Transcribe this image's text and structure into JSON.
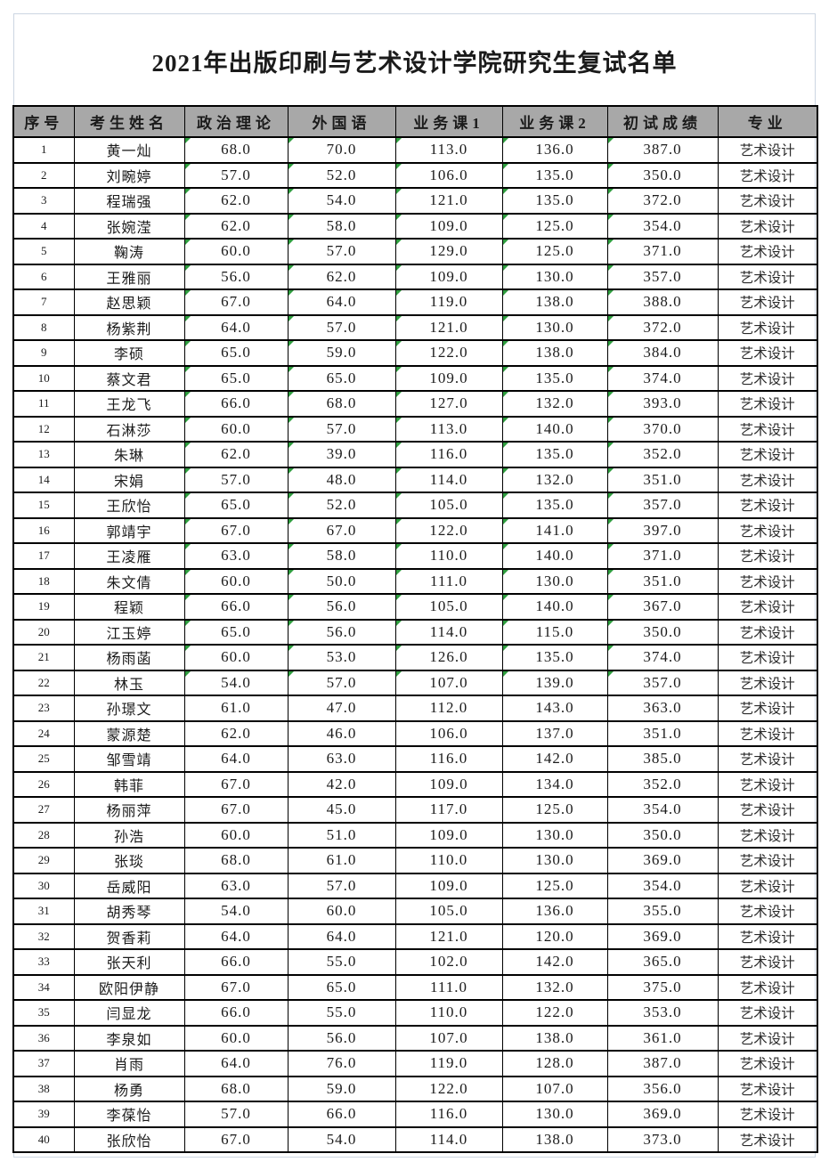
{
  "title": "2021年出版印刷与艺术设计学院研究生复试名单",
  "table": {
    "headers": [
      "序号",
      "考生姓名",
      "政治理论",
      "外国语",
      "业务课1",
      "业务课2",
      "初试成绩",
      "专业"
    ],
    "rows": [
      [
        "1",
        "黄一灿",
        "68.0",
        "70.0",
        "113.0",
        "136.0",
        "387.0",
        "艺术设计"
      ],
      [
        "2",
        "刘畹婷",
        "57.0",
        "52.0",
        "106.0",
        "135.0",
        "350.0",
        "艺术设计"
      ],
      [
        "3",
        "程瑞强",
        "62.0",
        "54.0",
        "121.0",
        "135.0",
        "372.0",
        "艺术设计"
      ],
      [
        "4",
        "张婉滢",
        "62.0",
        "58.0",
        "109.0",
        "125.0",
        "354.0",
        "艺术设计"
      ],
      [
        "5",
        "鞠涛",
        "60.0",
        "57.0",
        "129.0",
        "125.0",
        "371.0",
        "艺术设计"
      ],
      [
        "6",
        "王雅丽",
        "56.0",
        "62.0",
        "109.0",
        "130.0",
        "357.0",
        "艺术设计"
      ],
      [
        "7",
        "赵思颖",
        "67.0",
        "64.0",
        "119.0",
        "138.0",
        "388.0",
        "艺术设计"
      ],
      [
        "8",
        "杨紫荆",
        "64.0",
        "57.0",
        "121.0",
        "130.0",
        "372.0",
        "艺术设计"
      ],
      [
        "9",
        "李硕",
        "65.0",
        "59.0",
        "122.0",
        "138.0",
        "384.0",
        "艺术设计"
      ],
      [
        "10",
        "蔡文君",
        "65.0",
        "65.0",
        "109.0",
        "135.0",
        "374.0",
        "艺术设计"
      ],
      [
        "11",
        "王龙飞",
        "66.0",
        "68.0",
        "127.0",
        "132.0",
        "393.0",
        "艺术设计"
      ],
      [
        "12",
        "石淋莎",
        "60.0",
        "57.0",
        "113.0",
        "140.0",
        "370.0",
        "艺术设计"
      ],
      [
        "13",
        "朱琳",
        "62.0",
        "39.0",
        "116.0",
        "135.0",
        "352.0",
        "艺术设计"
      ],
      [
        "14",
        "宋娟",
        "57.0",
        "48.0",
        "114.0",
        "132.0",
        "351.0",
        "艺术设计"
      ],
      [
        "15",
        "王欣怡",
        "65.0",
        "52.0",
        "105.0",
        "135.0",
        "357.0",
        "艺术设计"
      ],
      [
        "16",
        "郭靖宇",
        "67.0",
        "67.0",
        "122.0",
        "141.0",
        "397.0",
        "艺术设计"
      ],
      [
        "17",
        "王凌雁",
        "63.0",
        "58.0",
        "110.0",
        "140.0",
        "371.0",
        "艺术设计"
      ],
      [
        "18",
        "朱文倩",
        "60.0",
        "50.0",
        "111.0",
        "130.0",
        "351.0",
        "艺术设计"
      ],
      [
        "19",
        "程颖",
        "66.0",
        "56.0",
        "105.0",
        "140.0",
        "367.0",
        "艺术设计"
      ],
      [
        "20",
        "江玉婷",
        "65.0",
        "56.0",
        "114.0",
        "115.0",
        "350.0",
        "艺术设计"
      ],
      [
        "21",
        "杨雨菡",
        "60.0",
        "53.0",
        "126.0",
        "135.0",
        "374.0",
        "艺术设计"
      ],
      [
        "22",
        "林玉",
        "54.0",
        "57.0",
        "107.0",
        "139.0",
        "357.0",
        "艺术设计"
      ],
      [
        "23",
        "孙璟文",
        "61.0",
        "47.0",
        "112.0",
        "143.0",
        "363.0",
        "艺术设计"
      ],
      [
        "24",
        "蒙源楚",
        "62.0",
        "46.0",
        "106.0",
        "137.0",
        "351.0",
        "艺术设计"
      ],
      [
        "25",
        "邹雪靖",
        "64.0",
        "63.0",
        "116.0",
        "142.0",
        "385.0",
        "艺术设计"
      ],
      [
        "26",
        "韩菲",
        "67.0",
        "42.0",
        "109.0",
        "134.0",
        "352.0",
        "艺术设计"
      ],
      [
        "27",
        "杨丽萍",
        "67.0",
        "45.0",
        "117.0",
        "125.0",
        "354.0",
        "艺术设计"
      ],
      [
        "28",
        "孙浩",
        "60.0",
        "51.0",
        "109.0",
        "130.0",
        "350.0",
        "艺术设计"
      ],
      [
        "29",
        "张琰",
        "68.0",
        "61.0",
        "110.0",
        "130.0",
        "369.0",
        "艺术设计"
      ],
      [
        "30",
        "岳威阳",
        "63.0",
        "57.0",
        "109.0",
        "125.0",
        "354.0",
        "艺术设计"
      ],
      [
        "31",
        "胡秀琴",
        "54.0",
        "60.0",
        "105.0",
        "136.0",
        "355.0",
        "艺术设计"
      ],
      [
        "32",
        "贺香莉",
        "64.0",
        "64.0",
        "121.0",
        "120.0",
        "369.0",
        "艺术设计"
      ],
      [
        "33",
        "张天利",
        "66.0",
        "55.0",
        "102.0",
        "142.0",
        "365.0",
        "艺术设计"
      ],
      [
        "34",
        "欧阳伊静",
        "67.0",
        "65.0",
        "111.0",
        "132.0",
        "375.0",
        "艺术设计"
      ],
      [
        "35",
        "闫显龙",
        "66.0",
        "55.0",
        "110.0",
        "122.0",
        "353.0",
        "艺术设计"
      ],
      [
        "36",
        "李泉如",
        "60.0",
        "56.0",
        "107.0",
        "138.0",
        "361.0",
        "艺术设计"
      ],
      [
        "37",
        "肖雨",
        "64.0",
        "76.0",
        "119.0",
        "128.0",
        "387.0",
        "艺术设计"
      ],
      [
        "38",
        "杨勇",
        "68.0",
        "59.0",
        "122.0",
        "107.0",
        "356.0",
        "艺术设计"
      ],
      [
        "39",
        "李葆怡",
        "57.0",
        "66.0",
        "116.0",
        "130.0",
        "369.0",
        "艺术设计"
      ],
      [
        "40",
        "张欣怡",
        "67.0",
        "54.0",
        "114.0",
        "138.0",
        "373.0",
        "艺术设计"
      ]
    ],
    "green_flag_row_count": 22,
    "green_flag_columns": [
      2,
      3,
      4,
      5,
      6
    ]
  },
  "colors": {
    "header_bg": "#a8a8a8",
    "table_border": "#000000",
    "flag_green": "#2f9e3f",
    "page_border": "#ccd6e2"
  }
}
